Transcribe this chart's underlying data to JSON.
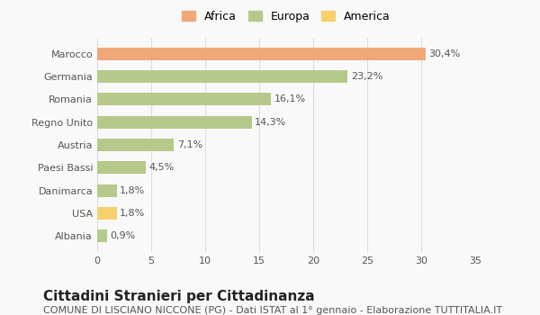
{
  "categories": [
    "Albania",
    "USA",
    "Danimarca",
    "Paesi Bassi",
    "Austria",
    "Regno Unito",
    "Romania",
    "Germania",
    "Marocco"
  ],
  "values": [
    0.9,
    1.8,
    1.8,
    4.5,
    7.1,
    14.3,
    16.1,
    23.2,
    30.4
  ],
  "labels": [
    "0,9%",
    "1,8%",
    "1,8%",
    "4,5%",
    "7,1%",
    "14,3%",
    "16,1%",
    "23,2%",
    "30,4%"
  ],
  "colors": [
    "#b5c98a",
    "#f5d16e",
    "#b5c98a",
    "#b5c98a",
    "#b5c98a",
    "#b5c98a",
    "#b5c98a",
    "#b5c98a",
    "#f0a878"
  ],
  "continents": [
    "Europa",
    "America",
    "Europa",
    "Europa",
    "Europa",
    "Europa",
    "Europa",
    "Europa",
    "Africa"
  ],
  "legend": [
    {
      "label": "Africa",
      "color": "#f0a878"
    },
    {
      "label": "Europa",
      "color": "#b5c98a"
    },
    {
      "label": "America",
      "color": "#f5d16e"
    }
  ],
  "xlim": [
    0,
    35
  ],
  "xticks": [
    0,
    5,
    10,
    15,
    20,
    25,
    30,
    35
  ],
  "title": "Cittadini Stranieri per Cittadinanza",
  "subtitle": "COMUNE DI LISCIANO NICCONE (PG) - Dati ISTAT al 1° gennaio - Elaborazione TUTTITALIA.IT",
  "background_color": "#f9f9f9",
  "grid_color": "#dddddd",
  "bar_height": 0.55,
  "title_fontsize": 11,
  "subtitle_fontsize": 8,
  "label_fontsize": 8,
  "tick_fontsize": 8
}
